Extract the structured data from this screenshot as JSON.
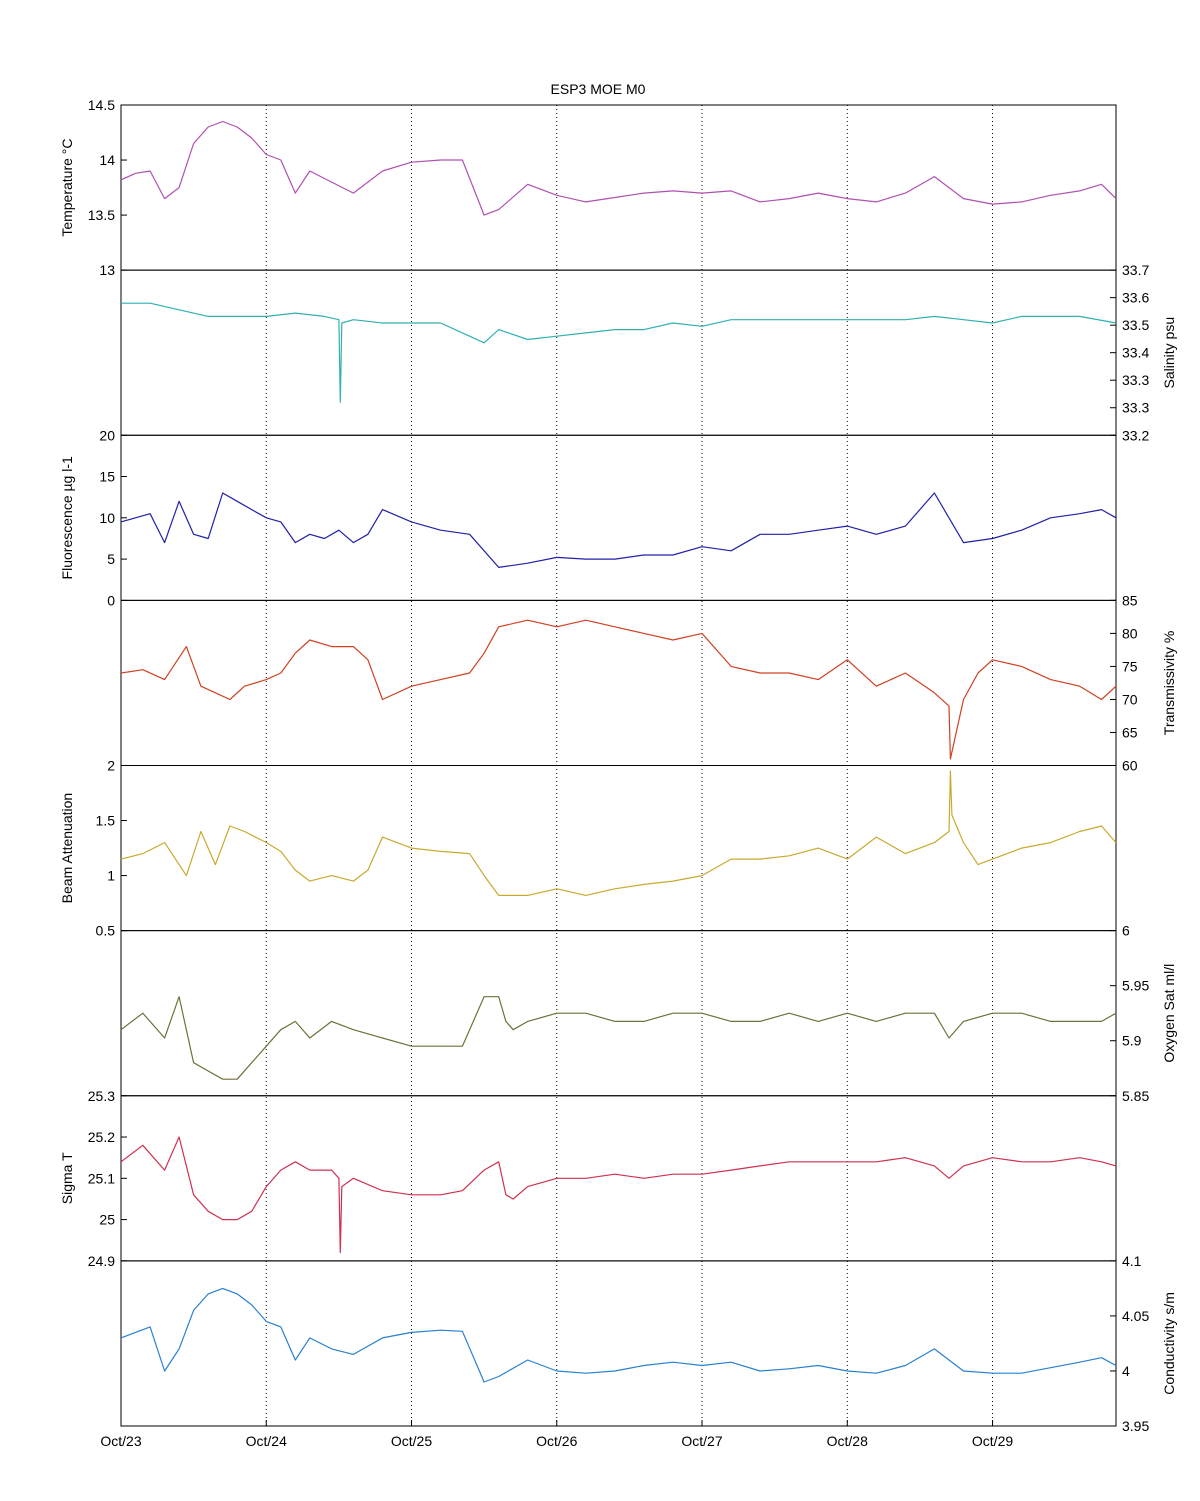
{
  "chart_data": {
    "type": "line",
    "title": "ESP3 MOE   M0",
    "grid": "vertical dotted",
    "x_tick_labels": [
      "Oct/23",
      "Oct/24",
      "Oct/25",
      "Oct/26",
      "Oct/27",
      "Oct/28",
      "Oct/29"
    ],
    "x_range_days": [
      0,
      6.85
    ],
    "panels": [
      {
        "ylabel": "Temperature °C",
        "axis_side": "left",
        "ylim": [
          13,
          14.5
        ],
        "ticks": [
          "13",
          "13.5",
          "14",
          "14.5"
        ],
        "color": "#b050b0",
        "series": {
          "name": "",
          "x": [
            0,
            0.1,
            0.2,
            0.3,
            0.4,
            0.5,
            0.6,
            0.7,
            0.8,
            0.9,
            1.0,
            1.1,
            1.2,
            1.3,
            1.45,
            1.6,
            1.8,
            2.0,
            2.2,
            2.35,
            2.5,
            2.6,
            2.8,
            3.0,
            3.2,
            3.4,
            3.6,
            3.8,
            4.0,
            4.2,
            4.4,
            4.6,
            4.8,
            5.0,
            5.2,
            5.4,
            5.6,
            5.8,
            6.0,
            6.2,
            6.4,
            6.6,
            6.75,
            6.85
          ],
          "y": [
            13.82,
            13.88,
            13.9,
            13.65,
            13.75,
            14.15,
            14.3,
            14.35,
            14.3,
            14.2,
            14.05,
            14.0,
            13.7,
            13.9,
            13.8,
            13.7,
            13.9,
            13.98,
            14.0,
            14.0,
            13.5,
            13.55,
            13.78,
            13.68,
            13.62,
            13.66,
            13.7,
            13.72,
            13.7,
            13.72,
            13.62,
            13.65,
            13.7,
            13.65,
            13.62,
            13.7,
            13.85,
            13.65,
            13.6,
            13.62,
            13.68,
            13.72,
            13.78,
            13.65
          ]
        }
      },
      {
        "ylabel": "Salinity psu",
        "axis_side": "right",
        "ylim": [
          33.2,
          33.7
        ],
        "ticks": [
          "33.2",
          "33.3",
          "33.3",
          "33.4",
          "33.5",
          "33.6",
          "33.7"
        ],
        "color": "#30b0b0",
        "series": {
          "name": "",
          "x": [
            0,
            0.2,
            0.4,
            0.6,
            0.8,
            1.0,
            1.2,
            1.4,
            1.5,
            1.51,
            1.52,
            1.6,
            1.8,
            2.0,
            2.2,
            2.4,
            2.5,
            2.6,
            2.8,
            3.0,
            3.2,
            3.4,
            3.6,
            3.8,
            4.0,
            4.2,
            4.4,
            4.6,
            4.8,
            5.0,
            5.2,
            5.4,
            5.6,
            5.8,
            6.0,
            6.2,
            6.4,
            6.6,
            6.85
          ],
          "y": [
            33.6,
            33.6,
            33.58,
            33.56,
            33.56,
            33.56,
            33.57,
            33.56,
            33.55,
            33.3,
            33.54,
            33.55,
            33.54,
            33.54,
            33.54,
            33.5,
            33.48,
            33.52,
            33.49,
            33.5,
            33.51,
            33.52,
            33.52,
            33.54,
            33.53,
            33.55,
            33.55,
            33.55,
            33.55,
            33.55,
            33.55,
            33.55,
            33.56,
            33.55,
            33.54,
            33.56,
            33.56,
            33.56,
            33.54
          ]
        }
      },
      {
        "ylabel": "Fluorescence µg l-1",
        "axis_side": "left",
        "ylim": [
          0,
          20
        ],
        "ticks": [
          "0",
          "5",
          "10",
          "15",
          "20"
        ],
        "color": "#2020a8",
        "series": {
          "name": "",
          "x": [
            0,
            0.1,
            0.2,
            0.3,
            0.4,
            0.5,
            0.6,
            0.7,
            0.8,
            0.9,
            1.0,
            1.1,
            1.2,
            1.3,
            1.4,
            1.5,
            1.6,
            1.7,
            1.8,
            2.0,
            2.2,
            2.4,
            2.6,
            2.8,
            3.0,
            3.2,
            3.4,
            3.6,
            3.8,
            4.0,
            4.2,
            4.4,
            4.6,
            4.8,
            5.0,
            5.2,
            5.4,
            5.6,
            5.8,
            6.0,
            6.2,
            6.4,
            6.6,
            6.75,
            6.85
          ],
          "y": [
            9.5,
            10.0,
            10.5,
            7.0,
            12.0,
            8.0,
            7.5,
            13.0,
            12.0,
            11.0,
            10.0,
            9.5,
            7.0,
            8.0,
            7.5,
            8.5,
            7.0,
            8.0,
            11.0,
            9.5,
            8.5,
            8.0,
            4.0,
            4.5,
            5.2,
            5.0,
            5.0,
            5.5,
            5.5,
            6.5,
            6.0,
            8.0,
            8.0,
            8.5,
            9.0,
            8.0,
            9.0,
            13.0,
            7.0,
            7.5,
            8.5,
            10.0,
            10.5,
            11.0,
            10.0
          ]
        }
      },
      {
        "ylabel": "Transmissivity %",
        "axis_side": "right",
        "ylim": [
          60,
          85
        ],
        "ticks": [
          "60",
          "65",
          "70",
          "75",
          "80",
          "85"
        ],
        "color": "#d04020",
        "series": {
          "name": "",
          "x": [
            0,
            0.15,
            0.3,
            0.45,
            0.55,
            0.65,
            0.75,
            0.85,
            1.0,
            1.1,
            1.2,
            1.3,
            1.45,
            1.6,
            1.7,
            1.8,
            2.0,
            2.2,
            2.4,
            2.5,
            2.6,
            2.8,
            3.0,
            3.2,
            3.4,
            3.6,
            3.8,
            4.0,
            4.2,
            4.4,
            4.6,
            4.8,
            5.0,
            5.2,
            5.4,
            5.6,
            5.7,
            5.71,
            5.8,
            5.9,
            6.0,
            6.2,
            6.4,
            6.6,
            6.75,
            6.85
          ],
          "y": [
            74,
            74.5,
            73,
            78,
            72,
            71,
            70,
            72,
            73,
            74,
            77,
            79,
            78,
            78,
            76,
            70,
            72,
            73,
            74,
            77,
            81,
            82,
            81,
            82,
            81,
            80,
            79,
            80,
            75,
            74,
            74,
            73,
            76,
            72,
            74,
            71,
            69,
            61,
            70,
            74,
            76,
            75,
            73,
            72,
            70,
            72
          ]
        }
      },
      {
        "ylabel": "Beam Attenuation",
        "axis_side": "left",
        "ylim": [
          0.5,
          2
        ],
        "ticks": [
          "0.5",
          "1",
          "1.5",
          "2"
        ],
        "color": "#c8aa30",
        "series": {
          "name": "",
          "x": [
            0,
            0.15,
            0.3,
            0.45,
            0.55,
            0.65,
            0.75,
            0.85,
            1.0,
            1.1,
            1.2,
            1.3,
            1.45,
            1.6,
            1.7,
            1.8,
            2.0,
            2.2,
            2.4,
            2.5,
            2.6,
            2.8,
            3.0,
            3.2,
            3.4,
            3.6,
            3.8,
            4.0,
            4.2,
            4.4,
            4.6,
            4.8,
            5.0,
            5.2,
            5.4,
            5.6,
            5.7,
            5.71,
            5.72,
            5.8,
            5.9,
            6.0,
            6.2,
            6.4,
            6.6,
            6.75,
            6.85
          ],
          "y": [
            1.15,
            1.2,
            1.3,
            1.0,
            1.4,
            1.1,
            1.45,
            1.4,
            1.3,
            1.22,
            1.05,
            0.95,
            1.0,
            0.95,
            1.05,
            1.35,
            1.25,
            1.22,
            1.2,
            1.0,
            0.82,
            0.82,
            0.88,
            0.82,
            0.88,
            0.92,
            0.95,
            1.0,
            1.15,
            1.15,
            1.18,
            1.25,
            1.15,
            1.35,
            1.2,
            1.3,
            1.4,
            1.95,
            1.55,
            1.3,
            1.1,
            1.15,
            1.25,
            1.3,
            1.4,
            1.45,
            1.3
          ]
        }
      },
      {
        "ylabel": "Oxygen Sat ml/l",
        "axis_side": "right",
        "ylim": [
          5.8,
          6
        ],
        "ticks": [
          "5.85",
          "5.9",
          "5.95",
          "6"
        ],
        "color": "#70703a",
        "series": {
          "name": "",
          "x": [
            0,
            0.15,
            0.3,
            0.4,
            0.5,
            0.6,
            0.7,
            0.8,
            0.9,
            1.0,
            1.1,
            1.2,
            1.3,
            1.45,
            1.6,
            1.8,
            2.0,
            2.2,
            2.35,
            2.5,
            2.6,
            2.65,
            2.7,
            2.8,
            3.0,
            3.2,
            3.4,
            3.6,
            3.8,
            4.0,
            4.2,
            4.4,
            4.6,
            4.8,
            5.0,
            5.2,
            5.4,
            5.6,
            5.7,
            5.8,
            6.0,
            6.2,
            6.4,
            6.6,
            6.75,
            6.85
          ],
          "y": [
            5.88,
            5.9,
            5.87,
            5.92,
            5.84,
            5.83,
            5.82,
            5.82,
            5.84,
            5.86,
            5.88,
            5.89,
            5.87,
            5.89,
            5.88,
            5.87,
            5.86,
            5.86,
            5.86,
            5.92,
            5.92,
            5.89,
            5.88,
            5.89,
            5.9,
            5.9,
            5.89,
            5.89,
            5.9,
            5.9,
            5.89,
            5.89,
            5.9,
            5.89,
            5.9,
            5.89,
            5.9,
            5.9,
            5.87,
            5.89,
            5.9,
            5.9,
            5.89,
            5.89,
            5.89,
            5.9
          ]
        }
      },
      {
        "ylabel": "Sigma T",
        "axis_side": "left",
        "ylim": [
          24.9,
          25.3
        ],
        "ticks": [
          "24.9",
          "25",
          "25.1",
          "25.2",
          "25.3"
        ],
        "color": "#d03050",
        "series": {
          "name": "",
          "x": [
            0,
            0.15,
            0.3,
            0.4,
            0.5,
            0.6,
            0.7,
            0.8,
            0.9,
            1.0,
            1.1,
            1.2,
            1.3,
            1.45,
            1.5,
            1.51,
            1.52,
            1.6,
            1.8,
            2.0,
            2.2,
            2.35,
            2.5,
            2.6,
            2.65,
            2.7,
            2.8,
            3.0,
            3.2,
            3.4,
            3.6,
            3.8,
            4.0,
            4.2,
            4.4,
            4.6,
            4.8,
            5.0,
            5.2,
            5.4,
            5.6,
            5.7,
            5.8,
            6.0,
            6.2,
            6.4,
            6.6,
            6.75,
            6.85
          ],
          "y": [
            25.14,
            25.18,
            25.12,
            25.2,
            25.06,
            25.02,
            25.0,
            25.0,
            25.02,
            25.08,
            25.12,
            25.14,
            25.12,
            25.12,
            25.1,
            24.92,
            25.08,
            25.1,
            25.07,
            25.06,
            25.06,
            25.07,
            25.12,
            25.14,
            25.06,
            25.05,
            25.08,
            25.1,
            25.1,
            25.11,
            25.1,
            25.11,
            25.11,
            25.12,
            25.13,
            25.14,
            25.14,
            25.14,
            25.14,
            25.15,
            25.13,
            25.1,
            25.13,
            25.15,
            25.14,
            25.14,
            25.15,
            25.14,
            25.13
          ]
        }
      },
      {
        "ylabel": "Conductivity s/m",
        "axis_side": "right",
        "ylim": [
          3.95,
          4.1
        ],
        "ticks": [
          "3.95",
          "4",
          "4.05",
          "4.1"
        ],
        "color": "#2880d0",
        "series": {
          "name": "",
          "x": [
            0,
            0.1,
            0.2,
            0.3,
            0.4,
            0.5,
            0.6,
            0.7,
            0.8,
            0.9,
            1.0,
            1.1,
            1.2,
            1.3,
            1.45,
            1.6,
            1.8,
            2.0,
            2.2,
            2.35,
            2.5,
            2.6,
            2.8,
            3.0,
            3.2,
            3.4,
            3.6,
            3.8,
            4.0,
            4.2,
            4.4,
            4.6,
            4.8,
            5.0,
            5.2,
            5.4,
            5.6,
            5.8,
            6.0,
            6.2,
            6.4,
            6.6,
            6.75,
            6.85
          ],
          "y": [
            4.03,
            4.035,
            4.04,
            4.0,
            4.02,
            4.055,
            4.07,
            4.075,
            4.07,
            4.06,
            4.045,
            4.04,
            4.01,
            4.03,
            4.02,
            4.015,
            4.03,
            4.035,
            4.037,
            4.036,
            3.99,
            3.995,
            4.01,
            4.0,
            3.998,
            4.0,
            4.005,
            4.008,
            4.005,
            4.008,
            4.0,
            4.002,
            4.005,
            4.0,
            3.998,
            4.005,
            4.02,
            4.0,
            3.998,
            3.998,
            4.003,
            4.008,
            4.012,
            4.005
          ]
        }
      }
    ]
  }
}
